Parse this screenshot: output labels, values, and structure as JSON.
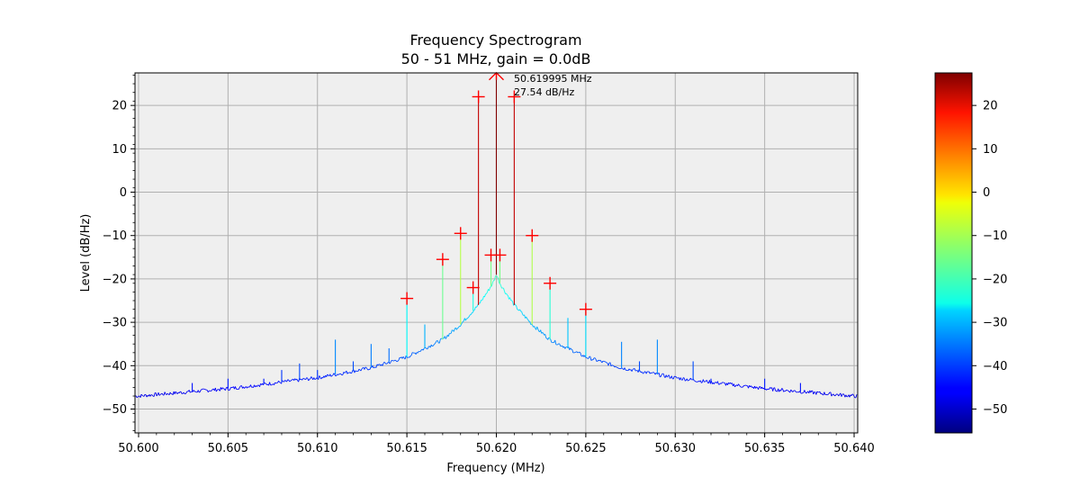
{
  "chart_data": {
    "type": "line",
    "title": "Frequency Spectrogram",
    "subtitle": "50 - 51 MHz, gain = 0.0dB",
    "xlabel": "Frequency (MHz)",
    "ylabel": "Level (dB/Hz)",
    "xlim": [
      50.5998,
      50.6402
    ],
    "ylim": [
      -55.5,
      27.5
    ],
    "grid": true,
    "plot_background": "#efefef",
    "line_colormap": "jet",
    "x_ticks": [
      "50.600",
      "50.605",
      "50.610",
      "50.615",
      "50.620",
      "50.625",
      "50.630",
      "50.635",
      "50.640"
    ],
    "y_ticks": [
      "20",
      "10",
      "0",
      "−10",
      "−20",
      "−30",
      "−40",
      "−50"
    ],
    "baseline": {
      "x": [
        50.6,
        50.605,
        50.61,
        50.613,
        50.615,
        50.617,
        50.618,
        50.619,
        50.6195,
        50.6198,
        50.62,
        50.6202,
        50.6205,
        50.621,
        50.622,
        50.623,
        50.625,
        50.627,
        50.63,
        50.635,
        50.64
      ],
      "y": [
        -47,
        -45.3,
        -42.8,
        -40.5,
        -38,
        -34,
        -30.5,
        -26,
        -23,
        -21,
        -19,
        -21,
        -23,
        -26,
        -30.5,
        -34,
        -38,
        -40.5,
        -42.8,
        -45.3,
        -47
      ]
    },
    "spikes": [
      {
        "x": 50.603,
        "y": -44
      },
      {
        "x": 50.605,
        "y": -43
      },
      {
        "x": 50.607,
        "y": -43
      },
      {
        "x": 50.608,
        "y": -41
      },
      {
        "x": 50.609,
        "y": -39.5
      },
      {
        "x": 50.61,
        "y": -41
      },
      {
        "x": 50.611,
        "y": -34
      },
      {
        "x": 50.612,
        "y": -39
      },
      {
        "x": 50.613,
        "y": -35
      },
      {
        "x": 50.614,
        "y": -36
      },
      {
        "x": 50.615,
        "y": -24.5
      },
      {
        "x": 50.616,
        "y": -30.5
      },
      {
        "x": 50.617,
        "y": -15.5
      },
      {
        "x": 50.618,
        "y": -9.5
      },
      {
        "x": 50.6187,
        "y": -22
      },
      {
        "x": 50.619,
        "y": 22
      },
      {
        "x": 50.6197,
        "y": -14.5
      },
      {
        "x": 50.62,
        "y": 27.54
      },
      {
        "x": 50.6202,
        "y": -14.5
      },
      {
        "x": 50.621,
        "y": 22
      },
      {
        "x": 50.622,
        "y": -10
      },
      {
        "x": 50.623,
        "y": -21
      },
      {
        "x": 50.624,
        "y": -29
      },
      {
        "x": 50.625,
        "y": -27
      },
      {
        "x": 50.627,
        "y": -34.5
      },
      {
        "x": 50.628,
        "y": -39
      },
      {
        "x": 50.629,
        "y": -34
      },
      {
        "x": 50.631,
        "y": -39
      },
      {
        "x": 50.632,
        "y": -43
      },
      {
        "x": 50.635,
        "y": -43
      },
      {
        "x": 50.637,
        "y": -44
      }
    ],
    "markers": [
      {
        "x": 50.615,
        "y": -24.5
      },
      {
        "x": 50.617,
        "y": -15.5
      },
      {
        "x": 50.618,
        "y": -9.5
      },
      {
        "x": 50.6187,
        "y": -22
      },
      {
        "x": 50.619,
        "y": 22
      },
      {
        "x": 50.6197,
        "y": -14.5
      },
      {
        "x": 50.6202,
        "y": -14.5
      },
      {
        "x": 50.621,
        "y": 22
      },
      {
        "x": 50.622,
        "y": -10
      },
      {
        "x": 50.623,
        "y": -21
      },
      {
        "x": 50.625,
        "y": -27
      }
    ],
    "peak": {
      "x": 50.62,
      "y": 27.54
    },
    "peak_annotation": {
      "freq_text": "50.619995 MHz",
      "level_text": "27.54 dB/Hz"
    },
    "colorbar": {
      "min": -55.5,
      "max": 27.5,
      "ticks": [
        20,
        10,
        0,
        -10,
        -20,
        -30,
        -40,
        -50
      ],
      "tick_labels": [
        "20",
        "10",
        "0",
        "−10",
        "−20",
        "−30",
        "−40",
        "−50"
      ]
    }
  }
}
